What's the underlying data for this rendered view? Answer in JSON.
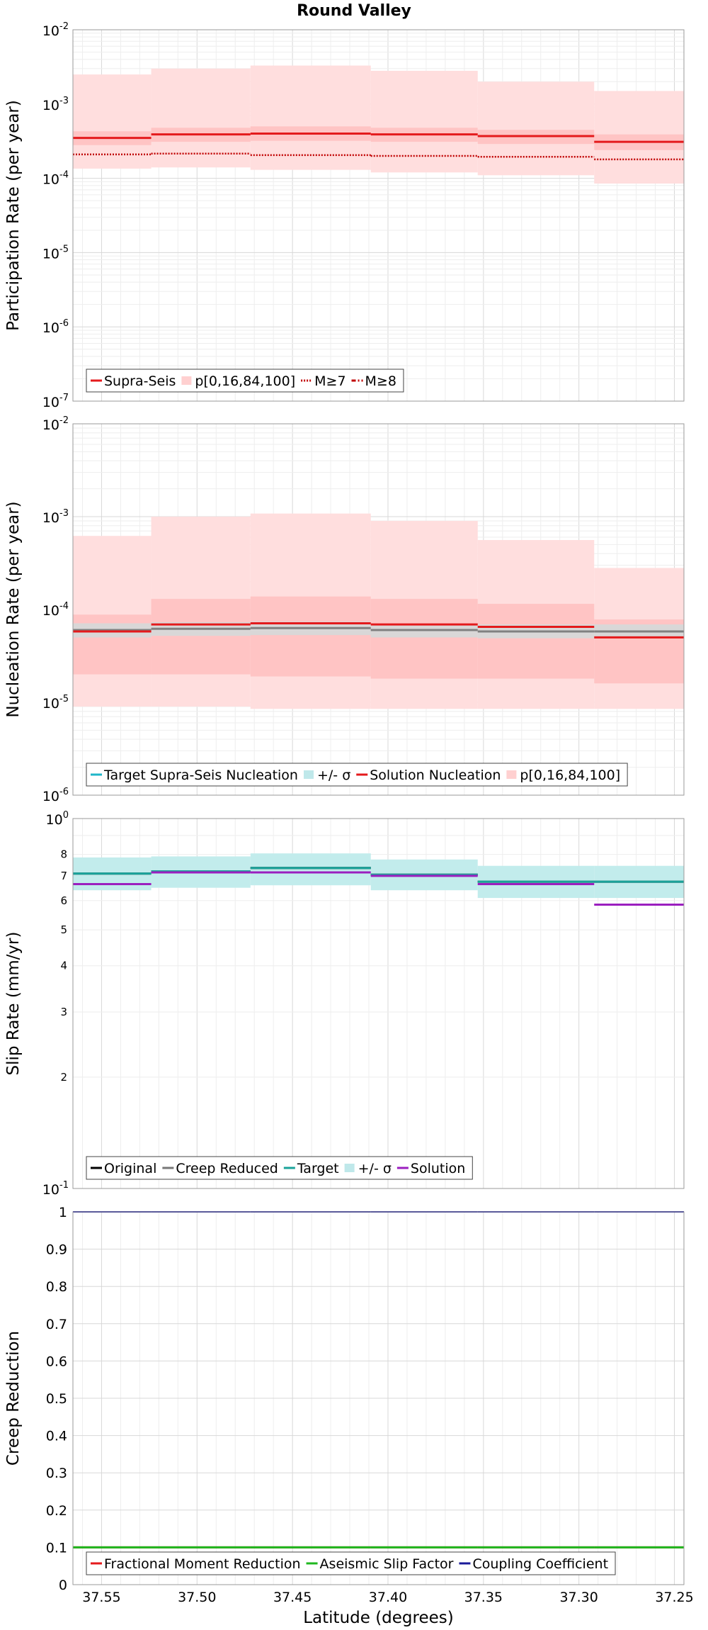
{
  "figure_title": "Round Valley",
  "chart_data": [
    {
      "type": "line",
      "id": "participation",
      "ylabel": "Participation Rate (per year)",
      "xlabel": "",
      "yscale": "log",
      "ylim": [
        1e-07,
        0.01
      ],
      "yticks": [
        {
          "base": "10",
          "exp": "-7"
        },
        {
          "base": "10",
          "exp": "-6"
        },
        {
          "base": "10",
          "exp": "-5"
        },
        {
          "base": "10",
          "exp": "-4"
        },
        {
          "base": "10",
          "exp": "-3"
        },
        {
          "base": "10",
          "exp": "-2"
        }
      ],
      "xlim": [
        37.565,
        37.245
      ],
      "x_edges": [
        37.565,
        37.524,
        37.472,
        37.409,
        37.353,
        37.292,
        37.245
      ],
      "bands": [
        {
          "name": "p[0,16,84,100] outer",
          "color": "#ffdede",
          "lower": [
            0.000135,
            0.00014,
            0.00013,
            0.00012,
            0.00011,
            8.5e-05
          ],
          "upper": [
            0.0025,
            0.003,
            0.0033,
            0.0028,
            0.002,
            0.0015
          ]
        },
        {
          "name": "p[0,16,84,100] inner",
          "color": "#ffc4c4",
          "lower": [
            0.00028,
            0.00031,
            0.00032,
            0.00031,
            0.00029,
            0.00024
          ],
          "upper": [
            0.00043,
            0.00048,
            0.0005,
            0.00048,
            0.00045,
            0.00039
          ]
        }
      ],
      "series": [
        {
          "name": "Supra-Seis",
          "color": "#e41a1c",
          "dash": "",
          "width": 3,
          "values": [
            0.00035,
            0.00039,
            0.0004,
            0.00039,
            0.00037,
            0.00031
          ]
        },
        {
          "name": "M≥7",
          "color": "#c00000",
          "dash": "2,2",
          "width": 2.5,
          "values": [
            0.00021,
            0.000215,
            0.000205,
            0.0002,
            0.000195,
            0.00018
          ]
        }
      ],
      "legend": [
        {
          "label": "Supra-Seis",
          "kind": "line",
          "color": "#e41a1c",
          "dash": ""
        },
        {
          "label": "p[0,16,84,100]",
          "kind": "band",
          "color": "#ffd0d0",
          "dash": ""
        },
        {
          "label": "M≥7",
          "kind": "line",
          "color": "#c00000",
          "dash": "2,2"
        },
        {
          "label": "M≥8",
          "kind": "line",
          "color": "#c00000",
          "dash": "6,3,2,3"
        }
      ]
    },
    {
      "type": "line",
      "id": "nucleation",
      "ylabel": "Nucleation Rate (per year)",
      "xlabel": "",
      "yscale": "log",
      "ylim": [
        1e-06,
        0.01
      ],
      "yticks": [
        {
          "base": "10",
          "exp": "-6"
        },
        {
          "base": "10",
          "exp": "-5"
        },
        {
          "base": "10",
          "exp": "-4"
        },
        {
          "base": "10",
          "exp": "-3"
        },
        {
          "base": "10",
          "exp": "-2"
        }
      ],
      "xlim": [
        37.565,
        37.245
      ],
      "x_edges": [
        37.565,
        37.524,
        37.472,
        37.409,
        37.353,
        37.292,
        37.245
      ],
      "bands": [
        {
          "name": "p[0,16,84,100] outer",
          "color": "#ffdede",
          "lower": [
            9e-06,
            9e-06,
            8.5e-06,
            8.5e-06,
            8.5e-06,
            8.5e-06
          ],
          "upper": [
            0.00062,
            0.001,
            0.00108,
            0.0009,
            0.00056,
            0.00028
          ]
        },
        {
          "name": "p[0,16,84,100] inner",
          "color": "#ffc4c4",
          "lower": [
            2e-05,
            2e-05,
            1.9e-05,
            1.8e-05,
            1.8e-05,
            1.6e-05
          ],
          "upper": [
            8.8e-05,
            0.00013,
            0.000138,
            0.00013,
            0.000115,
            7.8e-05
          ]
        },
        {
          "name": "+/- σ",
          "color": "#bfe4e4",
          "opacity": 0.6,
          "lower": [
            5e-05,
            5.2e-05,
            5.3e-05,
            5e-05,
            4.9e-05,
            4.9e-05
          ],
          "upper": [
            7.1e-05,
            7.3e-05,
            7.4e-05,
            7.1e-05,
            6.9e-05,
            6.9e-05
          ]
        }
      ],
      "series": [
        {
          "name": "Target Supra-Seis Nucleation",
          "color": "#808080",
          "dash": "",
          "width": 3,
          "values": [
            6e-05,
            6.2e-05,
            6.3e-05,
            6e-05,
            5.8e-05,
            5.8e-05
          ]
        },
        {
          "name": "Solution Nucleation",
          "color": "#e41a1c",
          "dash": "",
          "width": 3,
          "values": [
            5.8e-05,
            6.9e-05,
            7.1e-05,
            6.9e-05,
            6.5e-05,
            5e-05
          ]
        }
      ],
      "legend": [
        {
          "label": "Target Supra-Seis Nucleation",
          "kind": "line",
          "color": "#1fb6c8",
          "dash": ""
        },
        {
          "label": "+/- σ",
          "kind": "band",
          "color": "#bfe8ea",
          "dash": ""
        },
        {
          "label": "Solution Nucleation",
          "kind": "line",
          "color": "#e41a1c",
          "dash": ""
        },
        {
          "label": "p[0,16,84,100]",
          "kind": "band",
          "color": "#ffd0d0",
          "dash": ""
        }
      ]
    },
    {
      "type": "line",
      "id": "slip",
      "ylabel": "Slip Rate (mm/yr)",
      "xlabel": "",
      "yscale": "log",
      "ylim": [
        1,
        10
      ],
      "yticks": [
        {
          "base": "10",
          "exp": "-1"
        },
        {
          "base": "10",
          "exp": "0"
        }
      ],
      "minor_tick_labels": [
        "2",
        "3",
        "4",
        "5",
        "6",
        "7",
        "8"
      ],
      "xlim": [
        37.565,
        37.245
      ],
      "x_edges": [
        37.565,
        37.524,
        37.472,
        37.409,
        37.353,
        37.292,
        37.245
      ],
      "bands": [
        {
          "name": "+/- σ",
          "color": "#c2ecec",
          "lower": [
            6.4,
            6.5,
            6.6,
            6.4,
            6.1,
            6.1
          ],
          "upper": [
            7.85,
            7.9,
            8.05,
            7.75,
            7.45,
            7.45
          ]
        }
      ],
      "series": [
        {
          "name": "Original",
          "color": "#000000",
          "dash": "",
          "width": 3,
          "values": [
            7.1,
            7.2,
            7.35,
            7.05,
            6.75,
            6.75
          ]
        },
        {
          "name": "Creep Reduced",
          "color": "#777777",
          "dash": "",
          "width": 3,
          "values": [
            7.1,
            7.2,
            7.35,
            7.05,
            6.75,
            6.75
          ]
        },
        {
          "name": "Target",
          "color": "#1aa39a",
          "dash": "",
          "width": 3,
          "values": [
            7.1,
            7.2,
            7.35,
            7.05,
            6.75,
            6.75
          ]
        },
        {
          "name": "Solution",
          "color": "#9b1fbf",
          "dash": "",
          "width": 3,
          "values": [
            6.65,
            7.15,
            7.15,
            7.0,
            6.65,
            5.85
          ]
        }
      ],
      "legend": [
        {
          "label": "Original",
          "kind": "line",
          "color": "#000000",
          "dash": ""
        },
        {
          "label": "Creep Reduced",
          "kind": "line",
          "color": "#777777",
          "dash": ""
        },
        {
          "label": "Target",
          "kind": "line",
          "color": "#1aa39a",
          "dash": ""
        },
        {
          "label": "+/- σ",
          "kind": "band",
          "color": "#bfe8ea",
          "dash": ""
        },
        {
          "label": "Solution",
          "kind": "line",
          "color": "#9b1fbf",
          "dash": ""
        }
      ]
    },
    {
      "type": "line",
      "id": "creep",
      "ylabel": "Creep Reduction",
      "xlabel": "Latitude (degrees)",
      "yscale": "linear",
      "ylim": [
        0,
        1
      ],
      "yticks": [
        "0",
        "0.1",
        "0.2",
        "0.3",
        "0.4",
        "0.5",
        "0.6",
        "0.7",
        "0.8",
        "0.9",
        "1"
      ],
      "xlim": [
        37.565,
        37.245
      ],
      "xticks": [
        "37.55",
        "37.50",
        "37.45",
        "37.40",
        "37.35",
        "37.30",
        "37.25"
      ],
      "x_edges": [
        37.565,
        37.524,
        37.472,
        37.409,
        37.353,
        37.292,
        37.245
      ],
      "bands": [],
      "series": [
        {
          "name": "Fractional Moment Reduction",
          "color": "#e41a1c",
          "dash": "",
          "width": 3,
          "values": [
            0.1,
            0.1,
            0.1,
            0.1,
            0.1,
            0.1
          ]
        },
        {
          "name": "Aseismic Slip Factor",
          "color": "#1fb81f",
          "dash": "",
          "width": 3,
          "values": [
            0.1,
            0.1,
            0.1,
            0.1,
            0.1,
            0.1
          ]
        },
        {
          "name": "Coupling Coefficient",
          "color": "#1a1a99",
          "dash": "",
          "width": 2,
          "values": [
            1,
            1,
            1,
            1,
            1,
            1
          ]
        }
      ],
      "legend": [
        {
          "label": "Fractional Moment Reduction",
          "kind": "line",
          "color": "#e41a1c",
          "dash": ""
        },
        {
          "label": "Aseismic Slip Factor",
          "kind": "line",
          "color": "#1fb81f",
          "dash": ""
        },
        {
          "label": "Coupling Coefficient",
          "kind": "line",
          "color": "#1a1a99",
          "dash": ""
        }
      ]
    }
  ]
}
